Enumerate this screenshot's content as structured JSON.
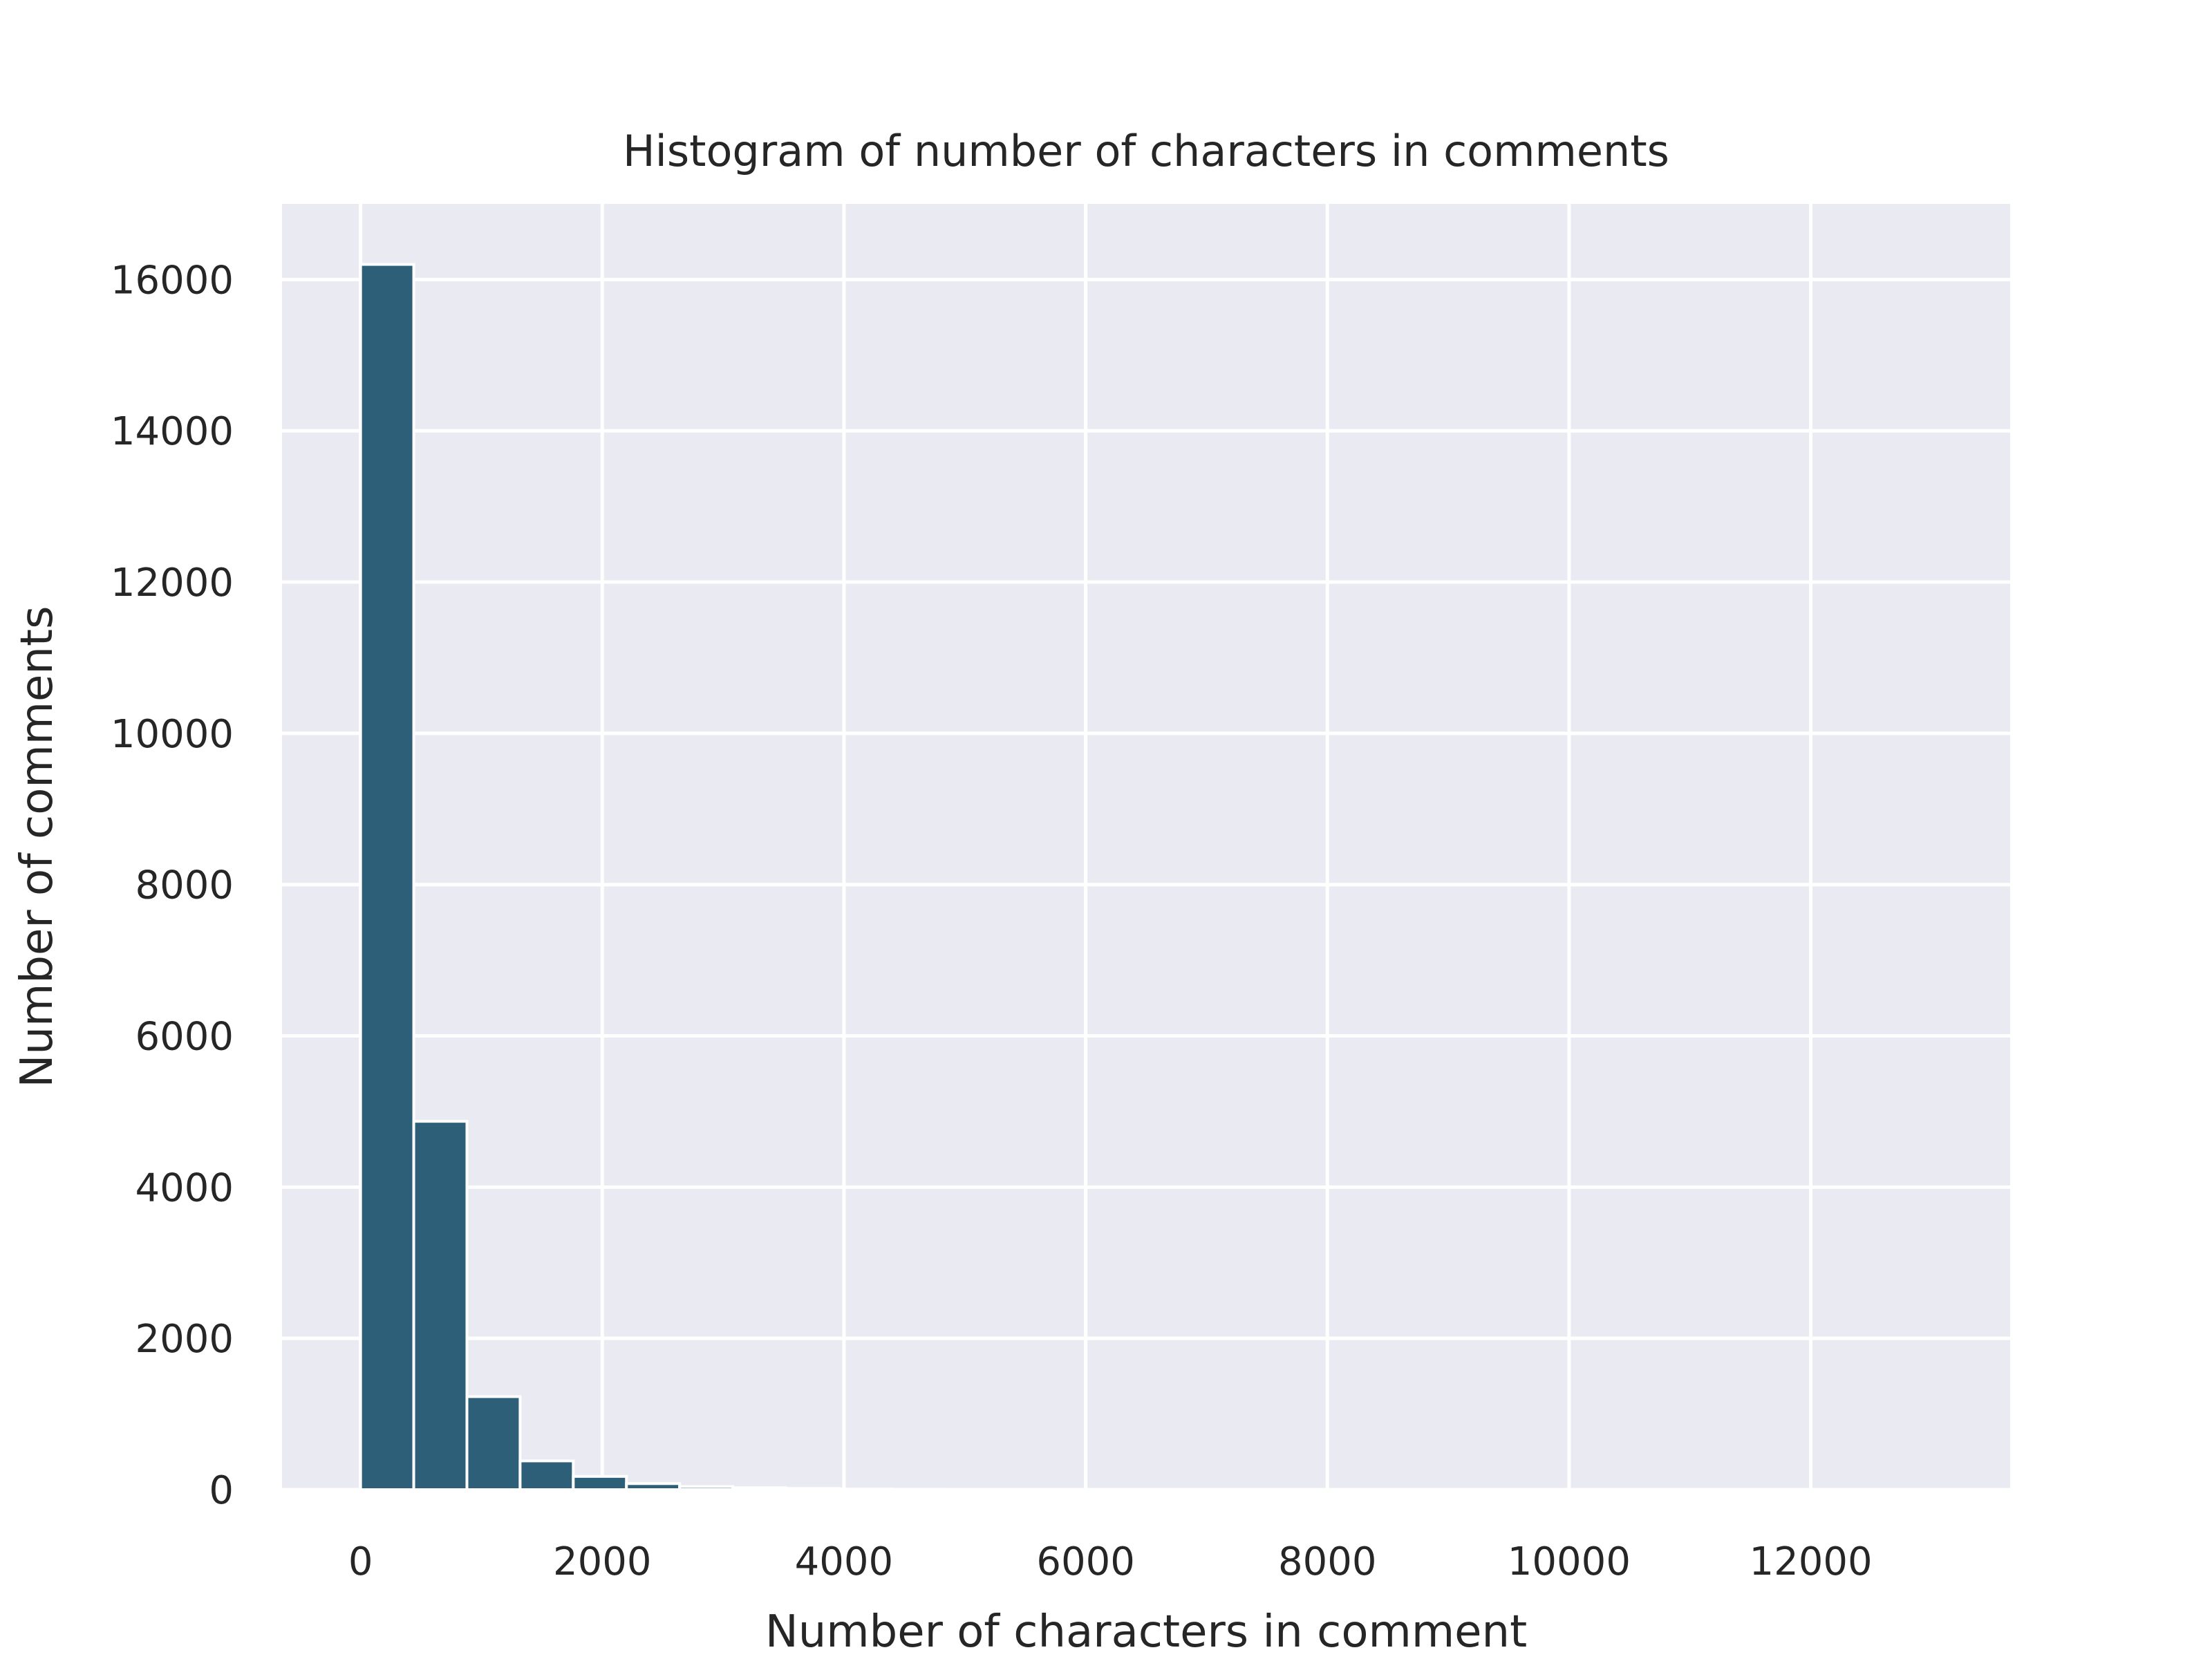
{
  "chart_data": {
    "type": "bar",
    "title": "Histogram of number of characters in comments",
    "xlabel": "Number of characters in comment",
    "ylabel": "Number of comments",
    "xlim": [
      -650,
      13650
    ],
    "ylim": [
      0,
      17000
    ],
    "xticks": [
      0,
      2000,
      4000,
      6000,
      8000,
      10000,
      12000
    ],
    "yticks": [
      0,
      2000,
      4000,
      6000,
      8000,
      10000,
      12000,
      14000,
      16000
    ],
    "grid": true,
    "bin_width": 440,
    "bins": [
      {
        "x0": 0,
        "x1": 440,
        "count": 16200
      },
      {
        "x0": 440,
        "x1": 880,
        "count": 4870
      },
      {
        "x0": 880,
        "x1": 1320,
        "count": 1230
      },
      {
        "x0": 1320,
        "x1": 1760,
        "count": 380
      },
      {
        "x0": 1760,
        "x1": 2200,
        "count": 175
      },
      {
        "x0": 2200,
        "x1": 2640,
        "count": 80
      },
      {
        "x0": 2640,
        "x1": 3080,
        "count": 40
      },
      {
        "x0": 3080,
        "x1": 3520,
        "count": 25
      },
      {
        "x0": 3520,
        "x1": 3960,
        "count": 15
      },
      {
        "x0": 3960,
        "x1": 4400,
        "count": 8
      },
      {
        "x0": 4400,
        "x1": 4840,
        "count": 5
      },
      {
        "x0": 4840,
        "x1": 5280,
        "count": 3
      },
      {
        "x0": 5280,
        "x1": 5720,
        "count": 2
      },
      {
        "x0": 5720,
        "x1": 6160,
        "count": 1
      },
      {
        "x0": 6160,
        "x1": 6600,
        "count": 1
      }
    ],
    "colors": {
      "bar": "#2e5f78",
      "bar_edge": "#ffffff",
      "plot_background": "#eaeaf2",
      "grid": "#ffffff",
      "text": "#262626"
    }
  }
}
